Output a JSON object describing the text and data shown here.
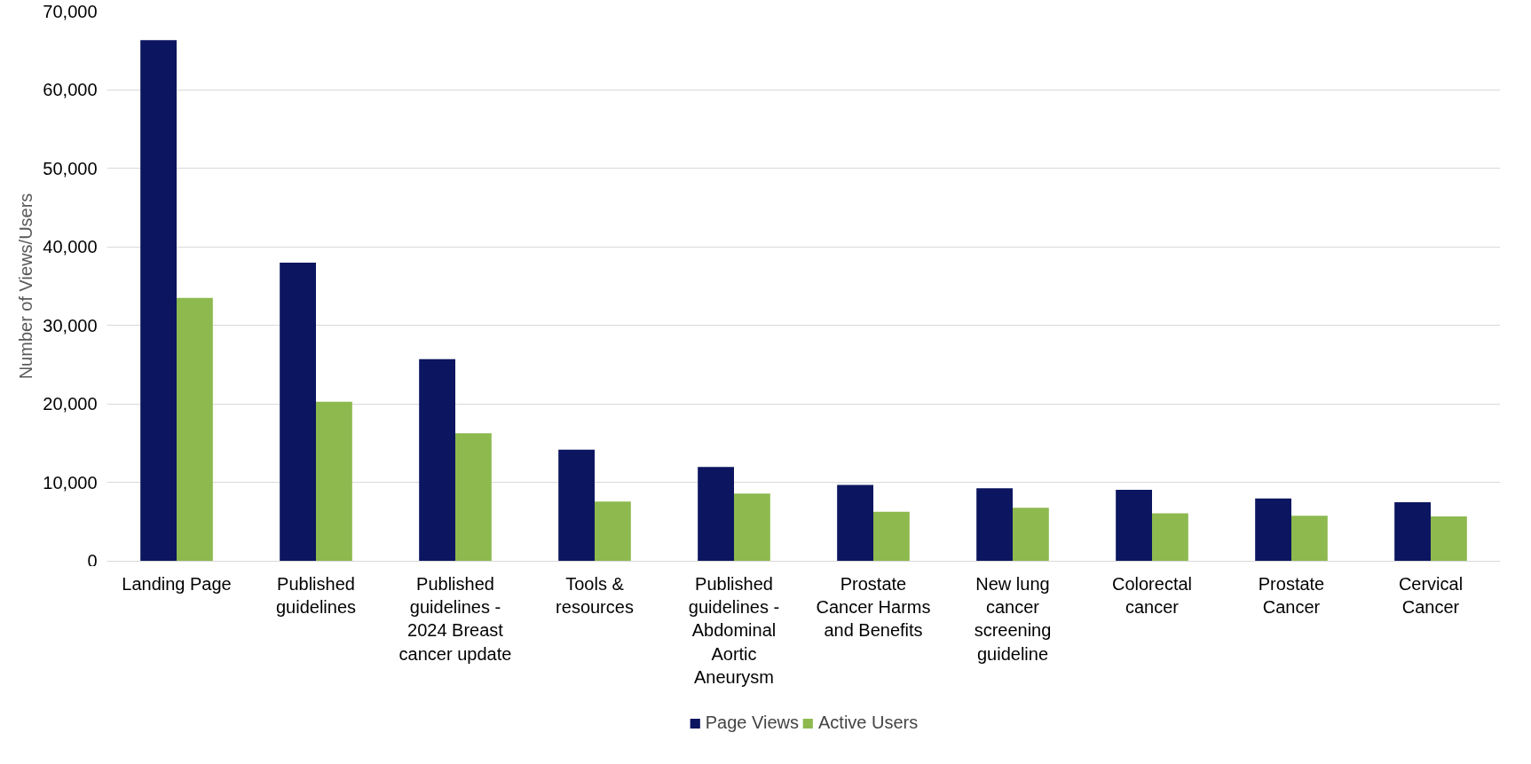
{
  "chart_data": {
    "type": "bar",
    "ylabel": "Number of Views/Users",
    "categories": [
      "Landing Page",
      "Published guidelines",
      "Published guidelines - 2024 Breast cancer update",
      "Tools & resources",
      "Published guidelines - Abdominal Aortic Aneurysm",
      "Prostate Cancer Harms and Benefits",
      "New lung cancer screening guideline",
      "Colorectal cancer",
      "Prostate Cancer",
      "Cervical Cancer"
    ],
    "series": [
      {
        "name": "Page Views",
        "color": "#0c1560",
        "values": [
          66300,
          38000,
          25700,
          14200,
          12000,
          9700,
          9300,
          9100,
          8000,
          7500
        ]
      },
      {
        "name": "Active Users",
        "color": "#8db94e",
        "values": [
          33500,
          20300,
          16300,
          7600,
          8600,
          6300,
          6800,
          6100,
          5800,
          5700
        ]
      }
    ],
    "ylim": [
      0,
      70000
    ],
    "yticks": [
      {
        "value": 0,
        "label": "0"
      },
      {
        "value": 10000,
        "label": "10,000"
      },
      {
        "value": 20000,
        "label": "20,000"
      },
      {
        "value": 30000,
        "label": "30,000"
      },
      {
        "value": 40000,
        "label": "40,000"
      },
      {
        "value": 50000,
        "label": "50,000"
      },
      {
        "value": 60000,
        "label": "60,000"
      },
      {
        "value": 70000,
        "label": "70,000"
      }
    ],
    "grid": "y",
    "legend": "bottom"
  }
}
